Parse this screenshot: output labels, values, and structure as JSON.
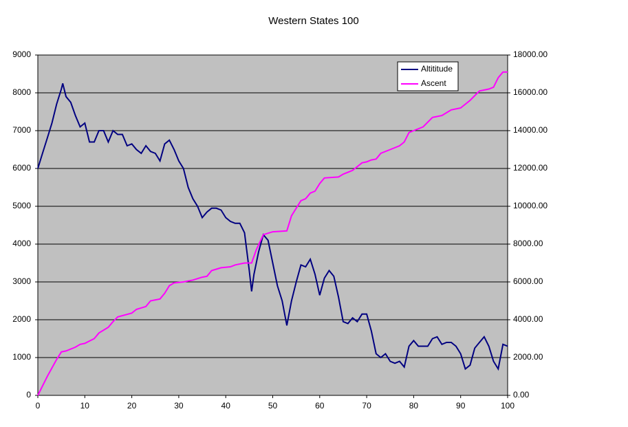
{
  "chart_data": {
    "type": "line",
    "title": "Western States 100",
    "xlim": [
      0,
      100
    ],
    "xticks": [
      0,
      10,
      20,
      30,
      40,
      50,
      60,
      70,
      80,
      90,
      100
    ],
    "ylim": [
      0,
      9000
    ],
    "yticks": [
      0,
      1000,
      2000,
      3000,
      4000,
      5000,
      6000,
      7000,
      8000,
      9000
    ],
    "y2lim": [
      0,
      18000
    ],
    "y2ticks": [
      {
        "value": 0,
        "label": "0.00"
      },
      {
        "value": 2000,
        "label": "2000.00"
      },
      {
        "value": 4000,
        "label": "4000.00"
      },
      {
        "value": 6000,
        "label": "6000.00"
      },
      {
        "value": 8000,
        "label": "8000.00"
      },
      {
        "value": 10000,
        "label": "10000.00"
      },
      {
        "value": 12000,
        "label": "12000.00"
      },
      {
        "value": 14000,
        "label": "14000.00"
      },
      {
        "value": 16000,
        "label": "16000.00"
      },
      {
        "value": 18000,
        "label": "18000.00"
      }
    ],
    "grid": true,
    "legend": "top-right",
    "background": "#c0c0c0",
    "series": [
      {
        "name": "Altititude",
        "color": "#000080",
        "x": [
          0,
          1,
          2,
          3,
          4,
          5,
          5.3,
          6,
          7,
          8,
          9,
          10,
          11,
          12,
          13,
          14,
          15,
          16,
          17,
          18,
          19,
          20,
          21,
          22,
          23,
          24,
          25,
          26,
          27,
          28,
          29,
          30,
          31,
          32,
          33,
          34,
          35,
          36,
          37,
          38,
          39,
          40,
          41,
          42,
          43,
          44,
          45,
          45.5,
          46,
          47,
          48,
          49,
          50,
          51,
          52,
          53,
          54,
          55,
          56,
          57,
          58,
          59,
          60,
          61,
          62,
          63,
          64,
          65,
          66,
          67,
          68,
          69,
          70,
          71,
          72,
          73,
          74,
          75,
          76,
          77,
          78,
          79,
          80,
          81,
          82,
          83,
          84,
          85,
          86,
          87,
          88,
          89,
          90,
          91,
          92,
          93,
          94,
          95,
          96,
          97,
          98,
          99,
          100
        ],
        "values": [
          6000,
          6400,
          6800,
          7200,
          7700,
          8100,
          8250,
          7900,
          7750,
          7400,
          7100,
          7200,
          6700,
          6700,
          7000,
          7000,
          6700,
          7000,
          6900,
          6900,
          6600,
          6650,
          6500,
          6400,
          6600,
          6450,
          6400,
          6200,
          6650,
          6750,
          6500,
          6200,
          6000,
          5500,
          5200,
          5000,
          4700,
          4850,
          4950,
          4950,
          4900,
          4700,
          4600,
          4550,
          4550,
          4300,
          3300,
          2750,
          3200,
          3800,
          4250,
          4100,
          3500,
          2900,
          2500,
          1850,
          2500,
          3000,
          3450,
          3400,
          3600,
          3200,
          2650,
          3100,
          3300,
          3150,
          2600,
          1950,
          1900,
          2050,
          1950,
          2150,
          2150,
          1700,
          1100,
          1000,
          1100,
          900,
          850,
          900,
          750,
          1300,
          1450,
          1300,
          1300,
          1300,
          1500,
          1550,
          1350,
          1400,
          1400,
          1300,
          1100,
          700,
          800,
          1250,
          1400,
          1550,
          1300,
          900,
          700,
          1350,
          1300
        ]
      },
      {
        "name": "Ascent",
        "color": "#ff00ff",
        "axis": "y2",
        "x": [
          0,
          2,
          4,
          5,
          6,
          8,
          9,
          10,
          12,
          13,
          15,
          16,
          17,
          20,
          21,
          23,
          24,
          26,
          27,
          28,
          29,
          31,
          33,
          35,
          36,
          37,
          39,
          41,
          42,
          44,
          45.5,
          46.5,
          48,
          50,
          53,
          54,
          56,
          57,
          58,
          59,
          60,
          61,
          64,
          65,
          67,
          69,
          70,
          71,
          72,
          73,
          75,
          77,
          78,
          79,
          80,
          82,
          84,
          86,
          88,
          90,
          92,
          94,
          96,
          97,
          98,
          99,
          100
        ],
        "values": [
          0,
          1000,
          1900,
          2300,
          2350,
          2550,
          2700,
          2750,
          3000,
          3300,
          3600,
          3900,
          4150,
          4350,
          4550,
          4700,
          5000,
          5100,
          5400,
          5800,
          5950,
          6000,
          6100,
          6250,
          6300,
          6600,
          6750,
          6800,
          6900,
          7000,
          7000,
          7700,
          8500,
          8650,
          8700,
          9500,
          10300,
          10400,
          10700,
          10800,
          11200,
          11500,
          11550,
          11700,
          11900,
          12300,
          12350,
          12450,
          12500,
          12800,
          13000,
          13200,
          13400,
          13900,
          14000,
          14200,
          14700,
          14800,
          15100,
          15200,
          15600,
          16100,
          16200,
          16300,
          16800,
          17100,
          17100
        ]
      }
    ]
  }
}
